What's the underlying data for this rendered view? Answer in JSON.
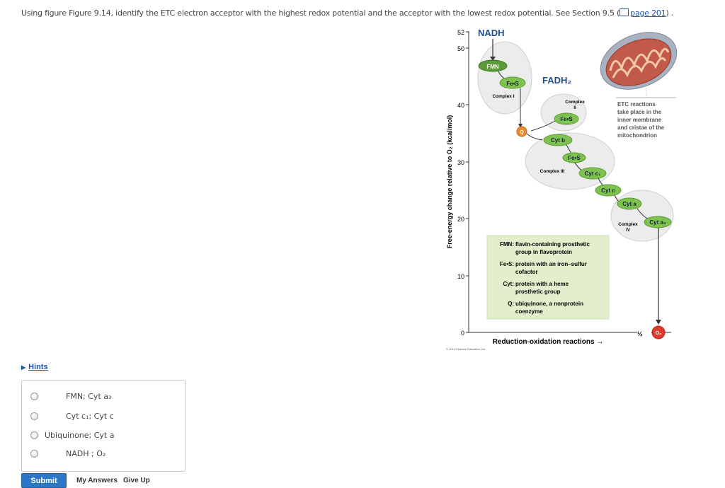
{
  "question": {
    "text": "Using figure Figure 9.14, identify the ETC electron acceptor with the highest redox potential and the acceptor with the lowest redox potential. See Section 9.5 (",
    "link": "page 201",
    "end": ") ."
  },
  "figure": {
    "y_axis_label": "Free-energy change relative to O₂ (kcal/mol)",
    "x_axis_label": "Reduction-oxidation reactions →",
    "y_ticks": [
      "52",
      "50",
      "40",
      "30",
      "20",
      "10",
      "0"
    ],
    "nadh": "NADH",
    "fadh2": "FADH₂",
    "complex_i": "Complex I",
    "complex_ii": "Complex",
    "complex_ii_num": "II",
    "complex_iii": "Complex III",
    "complex_iv": "Complex",
    "complex_iv_num": "IV",
    "fmn": "FMN",
    "fes_1": "Fe•S",
    "fes_2": "Fe•S",
    "fes_3": "Fe•S",
    "q": "Q",
    "cyt_b": "Cyt b",
    "cyt_c1": "Cyt c₁",
    "cyt_c": "Cyt c",
    "cyt_a": "Cyt a",
    "cyt_a3": "Cyt a₃",
    "o2": "O₂",
    "half": "½",
    "etc_note": [
      "ETC reactions",
      "take place in the",
      "inner membrane",
      "and cristae of the",
      "mitochondrion"
    ],
    "legend": [
      {
        "key": "FMN:",
        "text": [
          "flavin-containing prosthetic",
          "group in flavoprotein"
        ]
      },
      {
        "key": "Fe•S:",
        "text": [
          "protein with an iron–sulfur",
          "cofactor"
        ]
      },
      {
        "key": "Cyt:",
        "text": [
          "protein with a heme",
          "prosthetic group"
        ]
      },
      {
        "key": "Q:",
        "text": [
          "ubiquinone, a nonprotein",
          "coenzyme"
        ]
      }
    ],
    "copyright": "© 2014 Pearson Education, Inc."
  },
  "hints_label": "Hints",
  "options": [
    {
      "label": "FMN; Cyt a₃"
    },
    {
      "label": "Cyt c₁; Cyt c"
    },
    {
      "label": "Ubiquinone; Cyt a"
    },
    {
      "label": "NADH ; O₂"
    }
  ],
  "buttons": {
    "submit": "Submit",
    "my_answers": "My Answers",
    "give_up": "Give Up"
  }
}
